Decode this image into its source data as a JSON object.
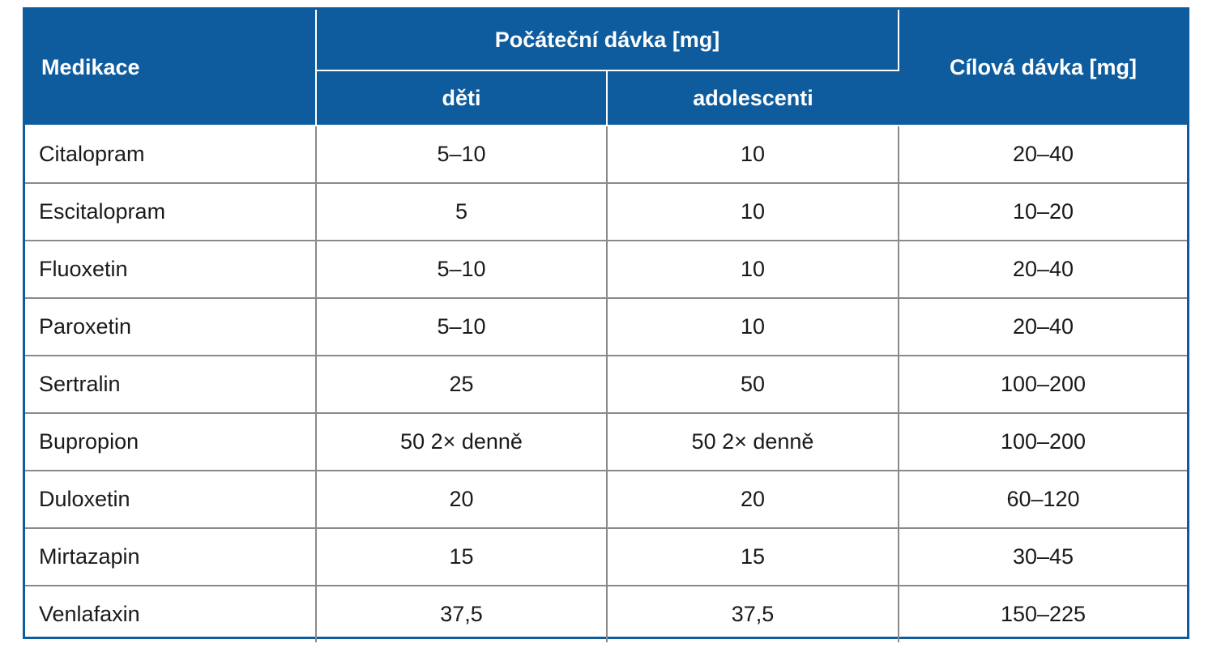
{
  "table": {
    "headers": {
      "medikace": "Medikace",
      "pocatecni": "Počáteční dávka [mg]",
      "deti": "děti",
      "adolescenti": "adolescenti",
      "cilova": "Cílová dávka [mg]"
    },
    "rows": [
      {
        "name": "Citalopram",
        "deti": "5–10",
        "adolescenti": "10",
        "cilova": "20–40"
      },
      {
        "name": "Escitalopram",
        "deti": "5",
        "adolescenti": "10",
        "cilova": "10–20"
      },
      {
        "name": "Fluoxetin",
        "deti": "5–10",
        "adolescenti": "10",
        "cilova": "20–40"
      },
      {
        "name": "Paroxetin",
        "deti": "5–10",
        "adolescenti": "10",
        "cilova": "20–40"
      },
      {
        "name": "Sertralin",
        "deti": "25",
        "adolescenti": "50",
        "cilova": "100–200"
      },
      {
        "name": "Bupropion",
        "deti": "50 2× denně",
        "adolescenti": "50 2× denně",
        "cilova": "100–200"
      },
      {
        "name": "Duloxetin",
        "deti": "20",
        "adolescenti": "20",
        "cilova": "60–120"
      },
      {
        "name": "Mirtazapin",
        "deti": "15",
        "adolescenti": "15",
        "cilova": "30–45"
      },
      {
        "name": "Venlafaxin",
        "deti": "37,5",
        "adolescenti": "37,5",
        "cilova": "150–225"
      }
    ]
  },
  "colors": {
    "header_bg": "#0e5c9e",
    "header_text": "#ffffff",
    "border": "#0f5c9c",
    "grid": "#8a8a8a"
  }
}
